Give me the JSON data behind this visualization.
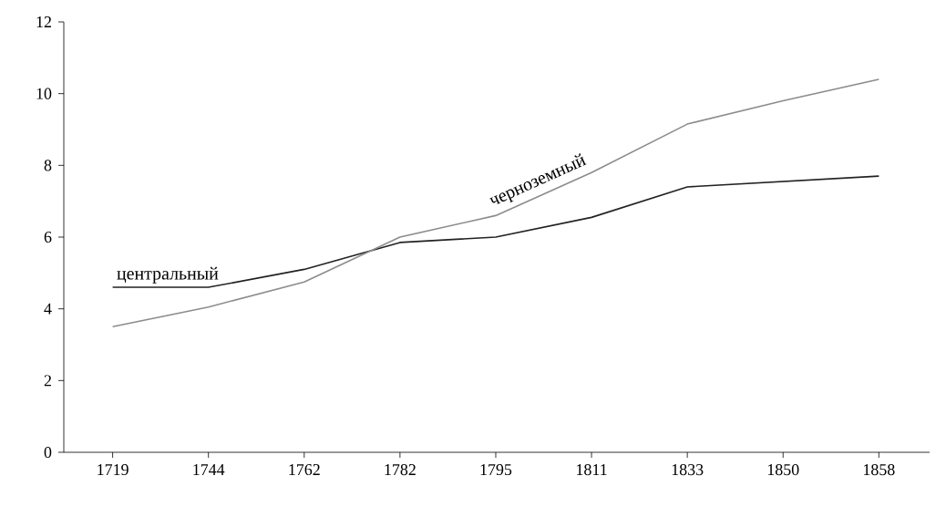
{
  "chart_data": {
    "type": "line",
    "categories": [
      "1719",
      "1744",
      "1762",
      "1782",
      "1795",
      "1811",
      "1833",
      "1850",
      "1858"
    ],
    "series": [
      {
        "name": "центральный",
        "color": "#222222",
        "values": [
          4.6,
          4.6,
          5.1,
          5.85,
          6.0,
          6.55,
          7.4,
          7.55,
          7.7
        ]
      },
      {
        "name": "черноземный",
        "color": "#8c8c8c",
        "values": [
          3.5,
          4.05,
          4.75,
          6.0,
          6.6,
          7.8,
          9.15,
          9.8,
          10.4
        ]
      }
    ],
    "ylim": [
      0,
      12
    ],
    "yticks": [
      0,
      2,
      4,
      6,
      8,
      10,
      12
    ],
    "grid": false,
    "legend": false,
    "marker": "none",
    "line_style": "solid"
  }
}
